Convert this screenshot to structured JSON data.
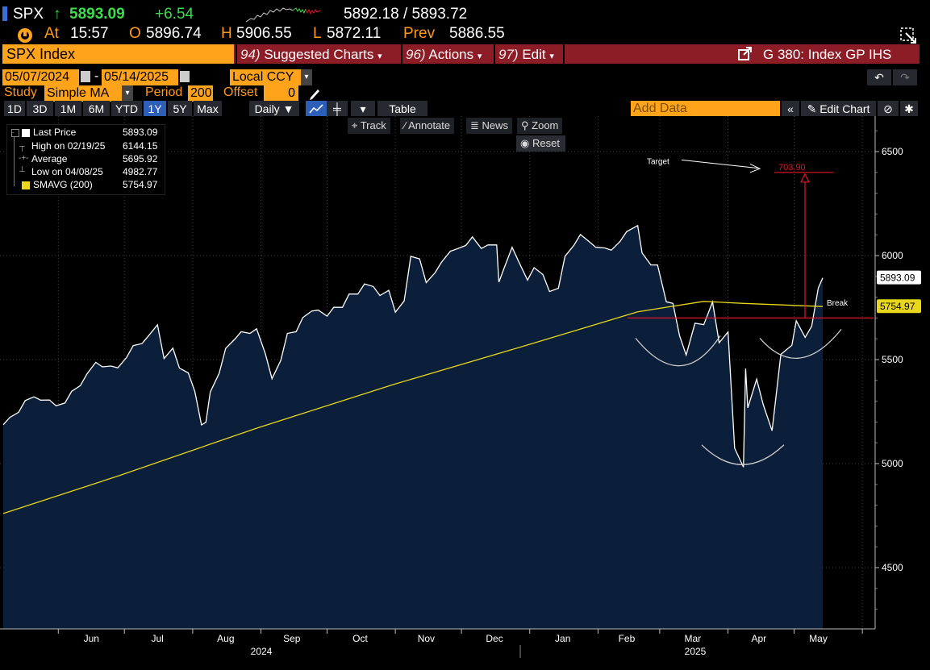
{
  "header": {
    "ticker": "SPX",
    "last": "5893.09",
    "up_arrow": "↑",
    "change": "+6.54",
    "bid_ask": "5892.18 / 5893.72",
    "at_label": "At",
    "time": "15:57",
    "open_label": "O",
    "open": "5896.74",
    "high_label": "H",
    "high": "5906.55",
    "low_label": "L",
    "low": "5872.11",
    "prev_label": "Prev",
    "prev": "5886.55"
  },
  "menubar": {
    "security": "SPX Index",
    "suggested_num": "94)",
    "suggested": "Suggested Charts",
    "actions_num": "96)",
    "actions": "Actions",
    "edit_num": "97)",
    "edit": "Edit",
    "page_title": "G 380: Index GP IHS"
  },
  "controls": {
    "start_date": "05/07/2024",
    "end_date": "05/14/2025",
    "dash": "-",
    "currency": "Local CCY",
    "study_label": "Study",
    "study_value": "Simple MA",
    "period_label": "Period",
    "period_value": "200",
    "offset_label": "Offset",
    "offset_value": "0",
    "ranges": [
      "1D",
      "3D",
      "1M",
      "6M",
      "YTD",
      "1Y",
      "5Y",
      "Max"
    ],
    "selected_range": "1Y",
    "frequency": "Daily ▼",
    "table": "Table",
    "add_data_placeholder": "Add Data",
    "edit_chart": "Edit Chart"
  },
  "toolbar": {
    "track": "Track",
    "annotate": "Annotate",
    "news": "News",
    "zoom": "Zoom",
    "reset": "Reset"
  },
  "legend": {
    "items": [
      {
        "label": "Last Price",
        "value": "5893.09"
      },
      {
        "label": "High on 02/19/25",
        "value": "6144.15"
      },
      {
        "label": "Average",
        "value": "5695.92"
      },
      {
        "label": "Low on 04/08/25",
        "value": "4982.77"
      },
      {
        "label": "SMAVG (200)",
        "value": "5754.97"
      }
    ]
  },
  "colors": {
    "area_fill": "#0c1f3a",
    "price_line": "#ffffff",
    "sma_line": "#e8d71a",
    "target_line": "#e2142a",
    "header_bar": "#8c1c26",
    "orange": "#ffa31a"
  },
  "chart_data": {
    "type": "area",
    "title": "",
    "xlabel": "",
    "ylabel": "",
    "ylim": [
      4250,
      6750
    ],
    "y_ticks": [
      4500,
      5000,
      5500,
      6000,
      6500
    ],
    "x_ticks": [
      "Jun",
      "Jul",
      "Aug",
      "Sep",
      "Oct",
      "Nov",
      "Dec",
      "Jan",
      "Feb",
      "Mar",
      "Apr",
      "May"
    ],
    "x_year_labels": [
      "2024",
      "2025"
    ],
    "grid": true,
    "legend_position": "top-left",
    "series": [
      {
        "name": "Last Price",
        "x": [
          "2024-05-07",
          "2024-05-10",
          "2024-05-14",
          "2024-05-17",
          "2024-05-21",
          "2024-05-24",
          "2024-05-28",
          "2024-05-31",
          "2024-06-04",
          "2024-06-07",
          "2024-06-11",
          "2024-06-14",
          "2024-06-18",
          "2024-06-21",
          "2024-06-25",
          "2024-06-28",
          "2024-07-02",
          "2024-07-05",
          "2024-07-09",
          "2024-07-12",
          "2024-07-16",
          "2024-07-19",
          "2024-07-23",
          "2024-07-26",
          "2024-07-30",
          "2024-08-02",
          "2024-08-05",
          "2024-08-07",
          "2024-08-09",
          "2024-08-13",
          "2024-08-16",
          "2024-08-20",
          "2024-08-23",
          "2024-08-27",
          "2024-08-30",
          "2024-09-03",
          "2024-09-06",
          "2024-09-10",
          "2024-09-13",
          "2024-09-17",
          "2024-09-20",
          "2024-09-24",
          "2024-09-27",
          "2024-10-01",
          "2024-10-04",
          "2024-10-08",
          "2024-10-11",
          "2024-10-15",
          "2024-10-18",
          "2024-10-22",
          "2024-10-25",
          "2024-10-29",
          "2024-11-01",
          "2024-11-05",
          "2024-11-08",
          "2024-11-12",
          "2024-11-15",
          "2024-11-19",
          "2024-11-22",
          "2024-11-26",
          "2024-11-29",
          "2024-12-03",
          "2024-12-06",
          "2024-12-10",
          "2024-12-13",
          "2024-12-17",
          "2024-12-18",
          "2024-12-20",
          "2024-12-24",
          "2024-12-27",
          "2024-12-31",
          "2025-01-03",
          "2025-01-07",
          "2025-01-10",
          "2025-01-14",
          "2025-01-17",
          "2025-01-21",
          "2025-01-24",
          "2025-01-28",
          "2025-01-31",
          "2025-02-04",
          "2025-02-07",
          "2025-02-11",
          "2025-02-14",
          "2025-02-19",
          "2025-02-21",
          "2025-02-25",
          "2025-02-28",
          "2025-03-04",
          "2025-03-07",
          "2025-03-10",
          "2025-03-13",
          "2025-03-17",
          "2025-03-21",
          "2025-03-25",
          "2025-03-28",
          "2025-04-01",
          "2025-04-04",
          "2025-04-08",
          "2025-04-09",
          "2025-04-10",
          "2025-04-14",
          "2025-04-17",
          "2025-04-21",
          "2025-04-25",
          "2025-04-30",
          "2025-05-02",
          "2025-05-06",
          "2025-05-09",
          "2025-05-12",
          "2025-05-14"
        ],
        "values": [
          5187,
          5222,
          5247,
          5303,
          5321,
          5305,
          5306,
          5278,
          5291,
          5347,
          5375,
          5431,
          5487,
          5465,
          5469,
          5460,
          5510,
          5567,
          5577,
          5615,
          5667,
          5505,
          5555,
          5459,
          5436,
          5346,
          5186,
          5199,
          5344,
          5434,
          5554,
          5597,
          5634,
          5626,
          5648,
          5528,
          5408,
          5496,
          5626,
          5634,
          5702,
          5733,
          5738,
          5709,
          5751,
          5751,
          5815,
          5815,
          5864,
          5851,
          5808,
          5833,
          5728,
          5782,
          5996,
          5984,
          5870,
          5917,
          5969,
          6021,
          6032,
          6049,
          6090,
          6034,
          6051,
          6051,
          5872,
          5930,
          6040,
          5971,
          5882,
          5942,
          5909,
          5827,
          5843,
          5997,
          6049,
          6101,
          6067,
          6040,
          6037,
          6026,
          6068,
          6115,
          6144,
          6013,
          5955,
          5955,
          5778,
          5770,
          5615,
          5522,
          5675,
          5668,
          5777,
          5581,
          5633,
          5074,
          4983,
          5457,
          5268,
          5406,
          5283,
          5158,
          5525,
          5569,
          5687,
          5607,
          5660,
          5844,
          5893
        ]
      },
      {
        "name": "SMAVG (200)",
        "x": [
          "2024-05-07",
          "2024-06-28",
          "2024-08-30",
          "2024-10-31",
          "2024-12-31",
          "2025-02-19",
          "2025-03-21",
          "2025-04-08",
          "2025-05-14"
        ],
        "values": [
          4760,
          4940,
          5170,
          5380,
          5570,
          5730,
          5780,
          5770,
          5754.97
        ]
      }
    ],
    "annotations": [
      {
        "type": "horizontal_line",
        "label": "Break",
        "value": 5700
      },
      {
        "type": "text",
        "label": "Target"
      },
      {
        "type": "target_value",
        "label": "703.90",
        "value": 6400
      },
      {
        "type": "last_price_tag",
        "label": "5893.09",
        "value": 5893.09
      },
      {
        "type": "sma_tag",
        "label": "5754.97",
        "value": 5754.97
      }
    ]
  }
}
